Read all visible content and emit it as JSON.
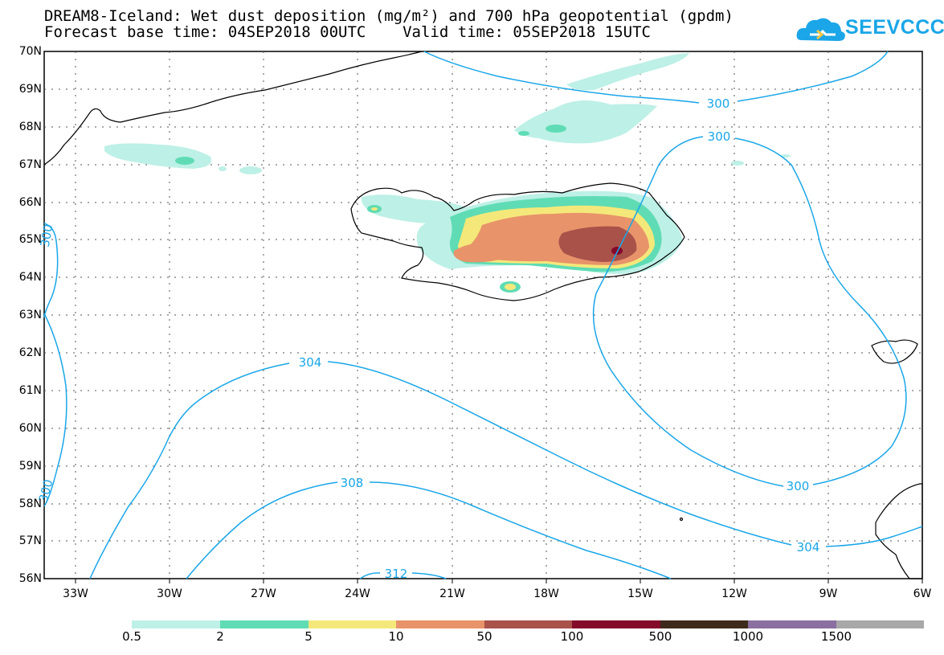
{
  "header": {
    "title_line1": "DREAM8-Iceland: Wet dust deposition (mg/m²) and 700 hPa geopotential (gpdm)",
    "title_line2": "Forecast base time: 04SEP2018 00UTC    Valid time: 05SEP2018 15UTC",
    "logo_text": "SEEVCCC",
    "brand_color": "#1aa6e8"
  },
  "map": {
    "lat_labels": [
      "70N",
      "69N",
      "68N",
      "67N",
      "66N",
      "65N",
      "64N",
      "63N",
      "62N",
      "61N",
      "60N",
      "59N",
      "58N",
      "57N",
      "56N"
    ],
    "lon_labels": [
      "33W",
      "30W",
      "27W",
      "24W",
      "21W",
      "18W",
      "15W",
      "12W",
      "9W",
      "6W"
    ],
    "contour_labels": [
      "300",
      "300",
      "304",
      "308",
      "312",
      "300",
      "304",
      "300",
      "300"
    ],
    "contour_color": "#1aa6e8"
  },
  "legend": {
    "colors": [
      "#bdf0e6",
      "#5fdcb4",
      "#f5e87a",
      "#e8936a",
      "#a8524a",
      "#840a2a",
      "#3e2a1a",
      "#8a6fa0",
      "#a8a8a8"
    ],
    "labels": [
      "0.5",
      "2",
      "5",
      "10",
      "50",
      "100",
      "500",
      "1000",
      "1500"
    ]
  }
}
